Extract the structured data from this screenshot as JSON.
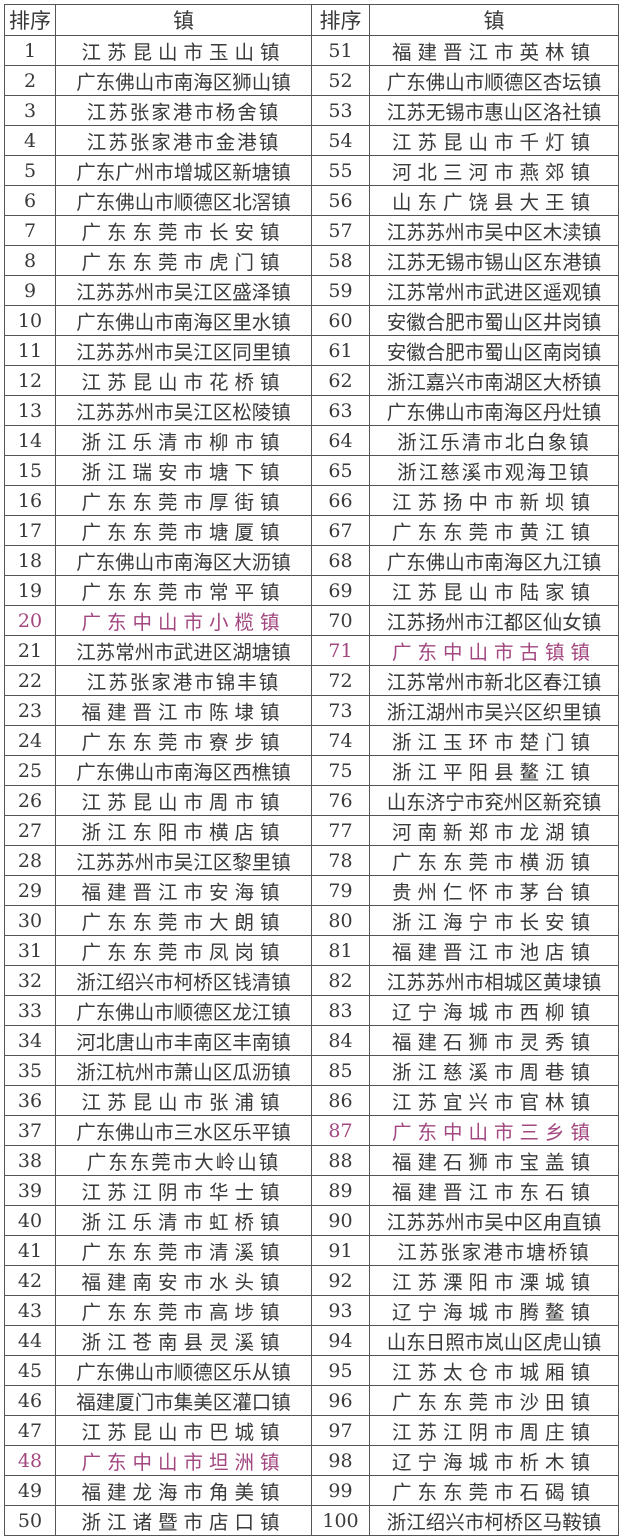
{
  "header": {
    "rank_label": "排序",
    "town_label": "镇"
  },
  "highlight_color": "#a2477f",
  "left": [
    {
      "rank": "1",
      "name": "江苏昆山市玉山镇"
    },
    {
      "rank": "2",
      "name": "广东佛山市南海区狮山镇"
    },
    {
      "rank": "3",
      "name": "江苏张家港市杨舍镇"
    },
    {
      "rank": "4",
      "name": "江苏张家港市金港镇"
    },
    {
      "rank": "5",
      "name": "广东广州市增城区新塘镇"
    },
    {
      "rank": "6",
      "name": "广东佛山市顺德区北滘镇"
    },
    {
      "rank": "7",
      "name": "广东东莞市长安镇"
    },
    {
      "rank": "8",
      "name": "广东东莞市虎门镇"
    },
    {
      "rank": "9",
      "name": "江苏苏州市吴江区盛泽镇"
    },
    {
      "rank": "10",
      "name": "广东佛山市南海区里水镇"
    },
    {
      "rank": "11",
      "name": "江苏苏州市吴江区同里镇"
    },
    {
      "rank": "12",
      "name": "江苏昆山市花桥镇"
    },
    {
      "rank": "13",
      "name": "江苏苏州市吴江区松陵镇"
    },
    {
      "rank": "14",
      "name": "浙江乐清市柳市镇"
    },
    {
      "rank": "15",
      "name": "浙江瑞安市塘下镇"
    },
    {
      "rank": "16",
      "name": "广东东莞市厚街镇"
    },
    {
      "rank": "17",
      "name": "广东东莞市塘厦镇"
    },
    {
      "rank": "18",
      "name": "广东佛山市南海区大沥镇"
    },
    {
      "rank": "19",
      "name": "广东东莞市常平镇"
    },
    {
      "rank": "20",
      "name": "广东中山市小榄镇",
      "highlight": true
    },
    {
      "rank": "21",
      "name": "江苏常州市武进区湖塘镇"
    },
    {
      "rank": "22",
      "name": "江苏张家港市锦丰镇"
    },
    {
      "rank": "23",
      "name": "福建晋江市陈埭镇"
    },
    {
      "rank": "24",
      "name": "广东东莞市寮步镇"
    },
    {
      "rank": "25",
      "name": "广东佛山市南海区西樵镇"
    },
    {
      "rank": "26",
      "name": "江苏昆山市周市镇"
    },
    {
      "rank": "27",
      "name": "浙江东阳市横店镇"
    },
    {
      "rank": "28",
      "name": "江苏苏州市吴江区黎里镇"
    },
    {
      "rank": "29",
      "name": "福建晋江市安海镇"
    },
    {
      "rank": "30",
      "name": "广东东莞市大朗镇"
    },
    {
      "rank": "31",
      "name": "广东东莞市凤岗镇"
    },
    {
      "rank": "32",
      "name": "浙江绍兴市柯桥区钱清镇"
    },
    {
      "rank": "33",
      "name": "广东佛山市顺德区龙江镇"
    },
    {
      "rank": "34",
      "name": "河北唐山市丰南区丰南镇"
    },
    {
      "rank": "35",
      "name": "浙江杭州市萧山区瓜沥镇"
    },
    {
      "rank": "36",
      "name": "江苏昆山市张浦镇"
    },
    {
      "rank": "37",
      "name": "广东佛山市三水区乐平镇"
    },
    {
      "rank": "38",
      "name": "广东东莞市大岭山镇"
    },
    {
      "rank": "39",
      "name": "江苏江阴市华士镇"
    },
    {
      "rank": "40",
      "name": "浙江乐清市虹桥镇"
    },
    {
      "rank": "41",
      "name": "广东东莞市清溪镇"
    },
    {
      "rank": "42",
      "name": "福建南安市水头镇"
    },
    {
      "rank": "43",
      "name": "广东东莞市高埗镇"
    },
    {
      "rank": "44",
      "name": "浙江苍南县灵溪镇"
    },
    {
      "rank": "45",
      "name": "广东佛山市顺德区乐从镇"
    },
    {
      "rank": "46",
      "name": "福建厦门市集美区灌口镇"
    },
    {
      "rank": "47",
      "name": "江苏昆山市巴城镇"
    },
    {
      "rank": "48",
      "name": "广东中山市坦洲镇",
      "highlight": true
    },
    {
      "rank": "49",
      "name": "福建龙海市角美镇"
    },
    {
      "rank": "50",
      "name": "浙江诸暨市店口镇"
    }
  ],
  "right": [
    {
      "rank": "51",
      "name": "福建晋江市英林镇"
    },
    {
      "rank": "52",
      "name": "广东佛山市顺德区杏坛镇"
    },
    {
      "rank": "53",
      "name": "江苏无锡市惠山区洛社镇"
    },
    {
      "rank": "54",
      "name": "江苏昆山市千灯镇"
    },
    {
      "rank": "55",
      "name": "河北三河市燕郊镇"
    },
    {
      "rank": "56",
      "name": "山东广饶县大王镇"
    },
    {
      "rank": "57",
      "name": "江苏苏州市吴中区木渎镇"
    },
    {
      "rank": "58",
      "name": "江苏无锡市锡山区东港镇"
    },
    {
      "rank": "59",
      "name": "江苏常州市武进区遥观镇"
    },
    {
      "rank": "60",
      "name": "安徽合肥市蜀山区井岗镇"
    },
    {
      "rank": "61",
      "name": "安徽合肥市蜀山区南岗镇"
    },
    {
      "rank": "62",
      "name": "浙江嘉兴市南湖区大桥镇"
    },
    {
      "rank": "63",
      "name": "广东佛山市南海区丹灶镇"
    },
    {
      "rank": "64",
      "name": "浙江乐清市北白象镇"
    },
    {
      "rank": "65",
      "name": "浙江慈溪市观海卫镇"
    },
    {
      "rank": "66",
      "name": "江苏扬中市新坝镇"
    },
    {
      "rank": "67",
      "name": "广东东莞市黄江镇"
    },
    {
      "rank": "68",
      "name": "广东佛山市南海区九江镇"
    },
    {
      "rank": "69",
      "name": "江苏昆山市陆家镇"
    },
    {
      "rank": "70",
      "name": "江苏扬州市江都区仙女镇"
    },
    {
      "rank": "71",
      "name": "广东中山市古镇镇",
      "highlight": true
    },
    {
      "rank": "72",
      "name": "江苏常州市新北区春江镇"
    },
    {
      "rank": "73",
      "name": "浙江湖州市吴兴区织里镇"
    },
    {
      "rank": "74",
      "name": "浙江玉环市楚门镇"
    },
    {
      "rank": "75",
      "name": "浙江平阳县鳌江镇"
    },
    {
      "rank": "76",
      "name": "山东济宁市兖州区新兖镇"
    },
    {
      "rank": "77",
      "name": "河南新郑市龙湖镇"
    },
    {
      "rank": "78",
      "name": "广东东莞市横沥镇"
    },
    {
      "rank": "79",
      "name": "贵州仁怀市茅台镇"
    },
    {
      "rank": "80",
      "name": "浙江海宁市长安镇"
    },
    {
      "rank": "81",
      "name": "福建晋江市池店镇"
    },
    {
      "rank": "82",
      "name": "江苏苏州市相城区黄埭镇"
    },
    {
      "rank": "83",
      "name": "辽宁海城市西柳镇"
    },
    {
      "rank": "84",
      "name": "福建石狮市灵秀镇"
    },
    {
      "rank": "85",
      "name": "浙江慈溪市周巷镇"
    },
    {
      "rank": "86",
      "name": "江苏宜兴市官林镇"
    },
    {
      "rank": "87",
      "name": "广东中山市三乡镇",
      "highlight": true
    },
    {
      "rank": "88",
      "name": "福建石狮市宝盖镇"
    },
    {
      "rank": "89",
      "name": "福建晋江市东石镇"
    },
    {
      "rank": "90",
      "name": "江苏苏州市吴中区甪直镇"
    },
    {
      "rank": "91",
      "name": "江苏张家港市塘桥镇"
    },
    {
      "rank": "92",
      "name": "江苏溧阳市溧城镇"
    },
    {
      "rank": "93",
      "name": "辽宁海城市腾鳌镇"
    },
    {
      "rank": "94",
      "name": "山东日照市岚山区虎山镇"
    },
    {
      "rank": "95",
      "name": "江苏太仓市城厢镇"
    },
    {
      "rank": "96",
      "name": "广东东莞市沙田镇"
    },
    {
      "rank": "97",
      "name": "江苏江阴市周庄镇"
    },
    {
      "rank": "98",
      "name": "辽宁海城市析木镇"
    },
    {
      "rank": "99",
      "name": "广东东莞市石碣镇"
    },
    {
      "rank": "100",
      "name": "浙江绍兴市柯桥区马鞍镇"
    }
  ]
}
